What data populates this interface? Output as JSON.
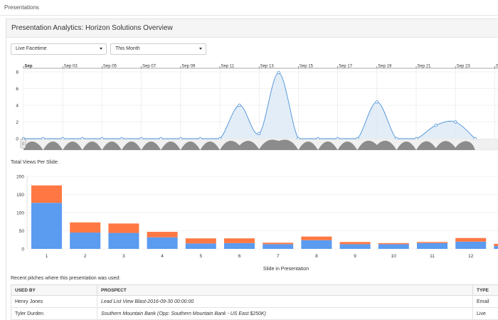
{
  "topbar": {
    "breadcrumb": "Presentations"
  },
  "header": {
    "title": "Presentation Analytics: Horizon Solutions Overview"
  },
  "filters": {
    "metric": "Live Facetime",
    "period": "This Month"
  },
  "timeline_chart": {
    "x_labels": [
      "Sep",
      "Sep 03",
      "Sep 05",
      "Sep 07",
      "Sep 09",
      "Sep 11",
      "Sep 13",
      "Sep 15",
      "Sep 17",
      "Sep 19",
      "Sep 21",
      "Sep 23",
      "S"
    ],
    "y_ticks": [
      "8",
      "6",
      "4",
      "2",
      "0"
    ],
    "colors": {
      "line": "#4a90d9",
      "fill": "#dbe9f5",
      "navigator": "#8c8c8c"
    }
  },
  "bar_section": {
    "label": "Total Views Per Slide:",
    "xlabel": "Slide in Presentation"
  },
  "chart_data": [
    {
      "type": "area",
      "title": "",
      "x": [
        "Sep 1",
        "Sep 2",
        "Sep 3",
        "Sep 4",
        "Sep 5",
        "Sep 6",
        "Sep 7",
        "Sep 8",
        "Sep 9",
        "Sep 10",
        "Sep 11",
        "Sep 12",
        "Sep 13",
        "Sep 14",
        "Sep 15",
        "Sep 16",
        "Sep 17",
        "Sep 18",
        "Sep 19",
        "Sep 20",
        "Sep 21",
        "Sep 22",
        "Sep 23",
        "Sep 24"
      ],
      "values": [
        0,
        0,
        0,
        0,
        0,
        0,
        0,
        0,
        0,
        0,
        0,
        4,
        0.6,
        7.9,
        0,
        0,
        0,
        0,
        4.4,
        0,
        0,
        1.6,
        2,
        0
      ],
      "ylim": [
        0,
        8
      ],
      "grid": true
    },
    {
      "type": "bar",
      "title": "",
      "xlabel": "Slide in Presentation",
      "ylabel": "",
      "categories": [
        "1",
        "2",
        "3",
        "4",
        "5",
        "6",
        "7",
        "8",
        "9",
        "10",
        "11",
        "12",
        "13"
      ],
      "series": [
        {
          "color": "#5b9bf0",
          "values": [
            127,
            45,
            44,
            32,
            15,
            16,
            13,
            24,
            13,
            13,
            16,
            20,
            8
          ]
        },
        {
          "color": "#ff7843",
          "values": [
            48,
            28,
            26,
            15,
            14,
            13,
            4,
            10,
            6,
            3,
            3,
            10,
            6
          ]
        }
      ],
      "ylim": [
        0,
        200
      ],
      "y_ticks": [
        0,
        50,
        100,
        150,
        200
      ]
    }
  ],
  "pitches": {
    "label": "Recent pitches where this presentation was used:",
    "columns": [
      "USED BY",
      "PROSPECT",
      "TYPE"
    ],
    "rows": [
      {
        "used_by": "Henry Jones",
        "prospect": "Lead List View Blast-2016-09-30 00:00:00",
        "type": "Email"
      },
      {
        "used_by": "Tyler Durden",
        "prospect": "Southern Mountain Bank (Opp: Southern Mountain Bank - US East $250K)",
        "type": "Live"
      }
    ]
  }
}
